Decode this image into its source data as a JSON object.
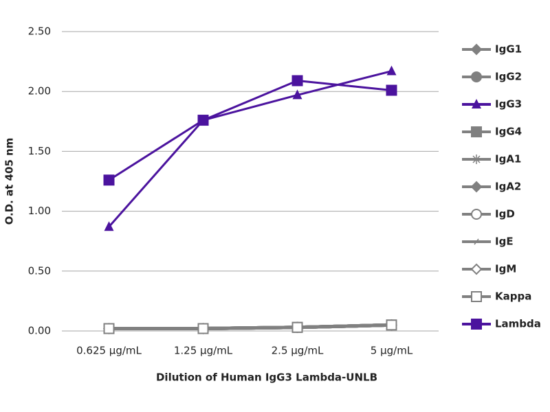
{
  "chart_data": {
    "type": "line",
    "x_label": "Dilution of Human IgG3 Lambda-UNLB",
    "y_label": "O.D. at 405 nm",
    "categories": [
      "0.625 µg/mL",
      "1.25 µg/mL",
      "2.5 µg/mL",
      "5 µg/mL"
    ],
    "ylim": [
      0,
      2.5
    ],
    "yticks": [
      {
        "value": 0,
        "label": "0.00"
      },
      {
        "value": 0.5,
        "label": "0.50"
      },
      {
        "value": 1,
        "label": "1.00"
      },
      {
        "value": 1.5,
        "label": "1.50"
      },
      {
        "value": 2,
        "label": "2.00"
      },
      {
        "value": 2.5,
        "label": "2.50"
      }
    ],
    "grid": true,
    "legend": "right",
    "series": [
      {
        "name": "IgG1",
        "color": "#808080",
        "marker": "diamond",
        "values": [
          0.02,
          0.02,
          0.03,
          0.05
        ]
      },
      {
        "name": "IgG2",
        "color": "#808080",
        "marker": "circle",
        "values": [
          0.02,
          0.02,
          0.03,
          0.05
        ]
      },
      {
        "name": "IgG3",
        "color": "#4b139e",
        "marker": "triangle",
        "values": [
          0.87,
          1.76,
          1.97,
          2.17
        ]
      },
      {
        "name": "IgG4",
        "color": "#808080",
        "marker": "square",
        "values": [
          0.02,
          0.02,
          0.03,
          0.05
        ]
      },
      {
        "name": "IgA1",
        "color": "#808080",
        "marker": "star",
        "values": [
          0.02,
          0.02,
          0.03,
          0.05
        ]
      },
      {
        "name": "IgA2",
        "color": "#808080",
        "marker": "diamond",
        "values": [
          0.02,
          0.02,
          0.03,
          0.05
        ]
      },
      {
        "name": "IgD",
        "color": "#808080",
        "marker": "open-circle",
        "values": [
          0.02,
          0.02,
          0.03,
          0.05
        ]
      },
      {
        "name": "IgE",
        "color": "#808080",
        "marker": "dash",
        "values": [
          0.02,
          0.02,
          0.03,
          0.05
        ]
      },
      {
        "name": "IgM",
        "color": "#808080",
        "marker": "open-diamond",
        "values": [
          0.02,
          0.02,
          0.03,
          0.05
        ]
      },
      {
        "name": "Kappa",
        "color": "#808080",
        "marker": "open-square",
        "values": [
          0.02,
          0.02,
          0.03,
          0.05
        ]
      },
      {
        "name": "Lambda",
        "color": "#4b139e",
        "marker": "square",
        "values": [
          1.26,
          1.76,
          2.09,
          2.01
        ]
      }
    ]
  }
}
